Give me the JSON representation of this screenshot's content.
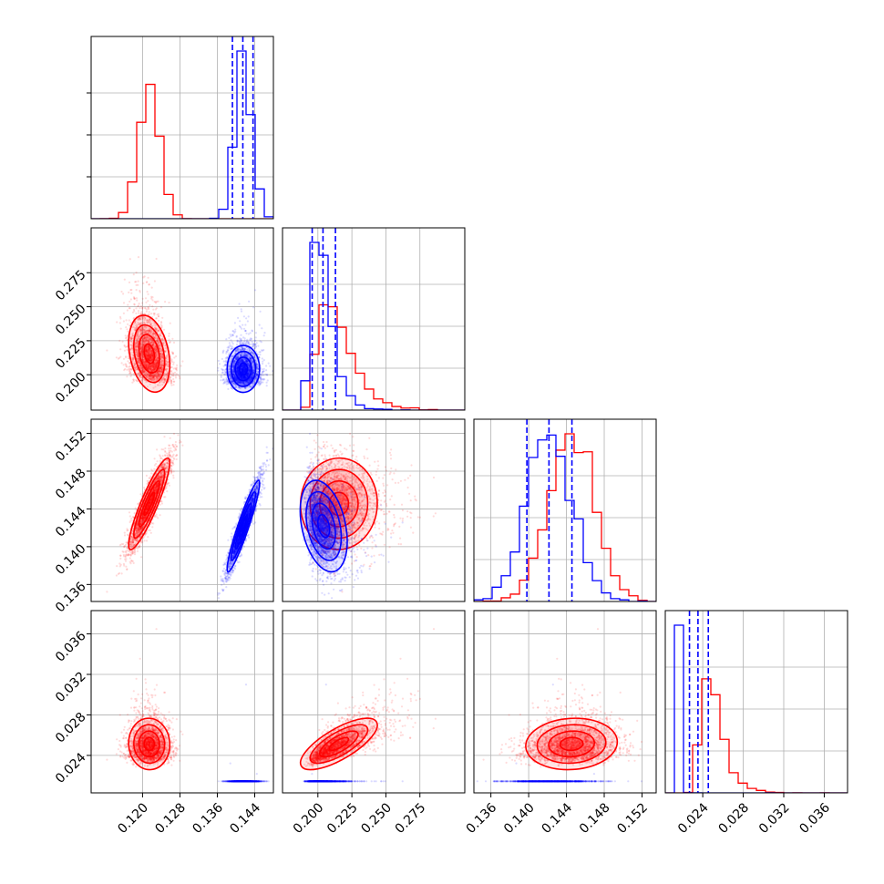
{
  "chart_data": {
    "type": "corner",
    "title": "",
    "parameters": [
      {
        "range": [
          0.109,
          0.148
        ],
        "ticks": [
          0.12,
          0.128,
          0.136,
          0.144
        ],
        "tick_labels": [
          "0.120",
          "0.128",
          "0.136",
          "0.144"
        ]
      },
      {
        "range": [
          0.174,
          0.308
        ],
        "ticks": [
          0.2,
          0.225,
          0.25,
          0.275
        ],
        "tick_labels": [
          "0.200",
          "0.225",
          "0.250",
          "0.275"
        ]
      },
      {
        "range": [
          0.1342,
          0.1535
        ],
        "ticks": [
          0.136,
          0.14,
          0.144,
          0.148,
          0.152
        ],
        "tick_labels": [
          "0.136",
          "0.140",
          "0.144",
          "0.148",
          "0.152"
        ]
      },
      {
        "range": [
          0.0203,
          0.0383
        ],
        "ticks": [
          0.024,
          0.028,
          0.032,
          0.036
        ],
        "tick_labels": [
          "0.024",
          "0.028",
          "0.032",
          "0.036"
        ]
      }
    ],
    "grid": true,
    "series": [
      {
        "color": "#ff0000",
        "means": [
          0.1215,
          0.2125,
          0.1446,
          0.0249
        ],
        "sds": [
          0.0022,
          0.0137,
          0.0024,
          0.00125
        ],
        "skew": [
          0,
          1,
          0,
          1
        ],
        "correlations": [
          [
            1,
            -0.3,
            0.9,
            0.0
          ],
          [
            -0.3,
            1,
            0.0,
            0.75
          ],
          [
            0.9,
            0.0,
            1,
            0.1
          ],
          [
            0.0,
            0.75,
            0.1,
            1
          ]
        ],
        "quantile_lines": false
      },
      {
        "color": "#0000ff",
        "means": [
          0.1415,
          0.2025,
          0.1421,
          0.02337
        ],
        "sds": [
          0.00175,
          0.0082,
          0.0024,
          0.0009
        ],
        "skew": [
          0,
          1,
          0,
          1
        ],
        "correlations": [
          [
            1,
            0.0,
            0.95,
            0.0
          ],
          [
            0.0,
            1,
            -0.35,
            0.75
          ],
          [
            0.95,
            -0.35,
            1,
            0.1
          ],
          [
            0.0,
            0.75,
            0.1,
            1
          ]
        ],
        "quantile_lines": true,
        "quantiles": [
          [
            0.13923,
            0.14146,
            0.14364
          ],
          [
            0.19581,
            0.20376,
            0.21291
          ],
          [
            0.13981,
            0.14215,
            0.14458
          ],
          [
            0.02269,
            0.02353,
            0.02455
          ]
        ]
      }
    ]
  }
}
